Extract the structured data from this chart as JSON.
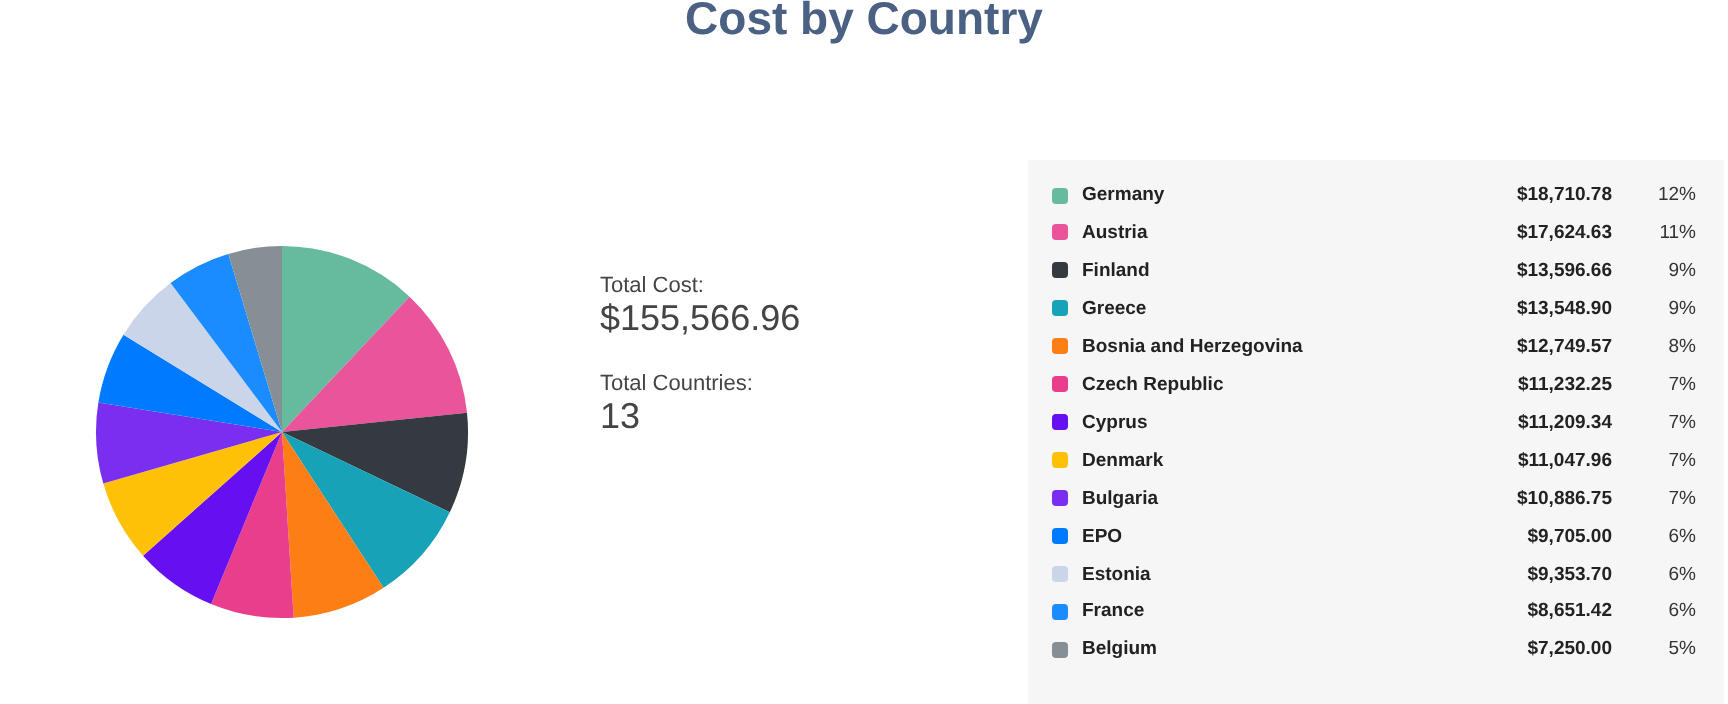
{
  "chart_data": {
    "type": "pie",
    "title": "Cost by Country",
    "categories": [
      "Germany",
      "Austria",
      "Finland",
      "Greece",
      "Bosnia and Herzegovina",
      "Czech Republic",
      "Cyprus",
      "Denmark",
      "Bulgaria",
      "EPO",
      "Estonia",
      "France",
      "Belgium"
    ],
    "values": [
      18710.78,
      17624.63,
      13596.66,
      13548.9,
      12749.57,
      11232.25,
      11209.34,
      11047.96,
      10886.75,
      9705.0,
      9353.7,
      8651.42,
      7250.0
    ],
    "colors": [
      "#66bb9f",
      "#e9549a",
      "#343a40",
      "#17a2b8",
      "#fd7e14",
      "#e83e8c",
      "#6610f2",
      "#ffc107",
      "#7a2ff0",
      "#007bff",
      "#cad5ea",
      "#1a8cff",
      "#868e96"
    ],
    "value_labels": [
      "$18,710.78",
      "$17,624.63",
      "$13,596.66",
      "$13,548.90",
      "$12,749.57",
      "$11,232.25",
      "$11,209.34",
      "$11,047.96",
      "$10,886.75",
      "$9,705.00",
      "$9,353.70",
      "$8,651.42",
      "$7,250.00"
    ],
    "annotations": [
      "Total Cost:",
      "$155,566.96",
      "Total Countries:",
      "13",
      "12%",
      "11%",
      "9%",
      "9%",
      "8%",
      "7%",
      "7%",
      "7%",
      "7%",
      "6%",
      "6%",
      "6%",
      "5%"
    ],
    "legend": "right"
  }
}
